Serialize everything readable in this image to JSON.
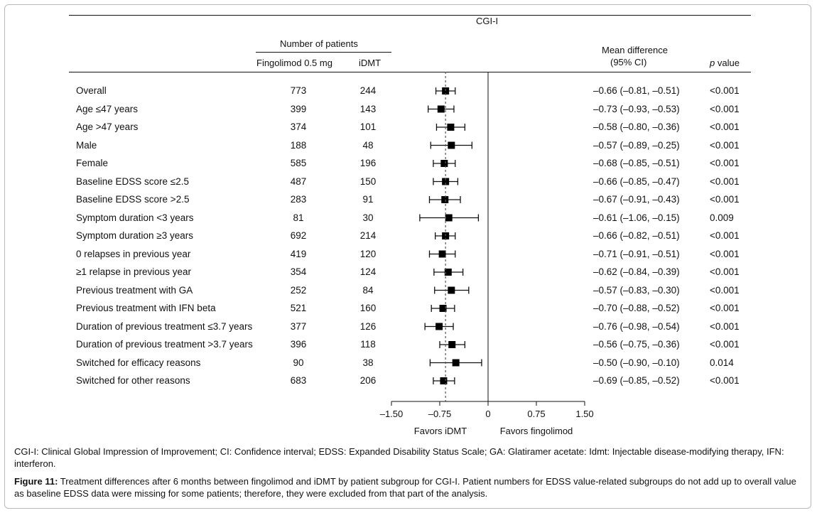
{
  "chart_data": {
    "type": "forest",
    "title": "CGI-I",
    "headers": {
      "number_of_patients": "Number of patients",
      "fingolimod": "Fingolimod 0.5 mg",
      "idmt": "iDMT",
      "mean_difference_line1": "Mean difference",
      "mean_difference_line2": "(95% CI)",
      "p_value_italic": "p",
      "p_value_rest": " value"
    },
    "x_axis": {
      "ticks": [
        -1.5,
        -0.75,
        0,
        0.75,
        1.5
      ],
      "tick_labels": [
        "–1.50",
        "–0.75",
        "0",
        "0.75",
        "1.50"
      ],
      "range": [
        -1.5,
        1.5
      ],
      "reference_line": 0,
      "dashed_line": -0.66,
      "left_label": "Favors iDMT",
      "right_label": "Favors fingolimod"
    },
    "rows": [
      {
        "label": "Overall",
        "fingolimod": "773",
        "idmt": "244",
        "mean": -0.66,
        "lo": -0.81,
        "hi": -0.51,
        "ci_text": "–0.66 (–0.81, –0.51)",
        "p": "<0.001"
      },
      {
        "label": "Age ≤47 years",
        "fingolimod": "399",
        "idmt": "143",
        "mean": -0.73,
        "lo": -0.93,
        "hi": -0.53,
        "ci_text": "–0.73 (–0.93, –0.53)",
        "p": "<0.001"
      },
      {
        "label": "Age >47 years",
        "fingolimod": "374",
        "idmt": "101",
        "mean": -0.58,
        "lo": -0.8,
        "hi": -0.36,
        "ci_text": "–0.58 (–0.80, –0.36)",
        "p": "<0.001"
      },
      {
        "label": "Male",
        "fingolimod": "188",
        "idmt": "48",
        "mean": -0.57,
        "lo": -0.89,
        "hi": -0.25,
        "ci_text": "–0.57 (–0.89, –0.25)",
        "p": "<0.001"
      },
      {
        "label": "Female",
        "fingolimod": "585",
        "idmt": "196",
        "mean": -0.68,
        "lo": -0.85,
        "hi": -0.51,
        "ci_text": "–0.68 (–0.85, –0.51)",
        "p": "<0.001"
      },
      {
        "label": "Baseline EDSS score ≤2.5",
        "fingolimod": "487",
        "idmt": "150",
        "mean": -0.66,
        "lo": -0.85,
        "hi": -0.47,
        "ci_text": "–0.66 (–0.85, –0.47)",
        "p": "<0.001"
      },
      {
        "label": "Baseline EDSS score >2.5",
        "fingolimod": "283",
        "idmt": "91",
        "mean": -0.67,
        "lo": -0.91,
        "hi": -0.43,
        "ci_text": "–0.67 (–0.91, –0.43)",
        "p": "<0.001"
      },
      {
        "label": "Symptom duration <3 years",
        "fingolimod": "81",
        "idmt": "30",
        "mean": -0.61,
        "lo": -1.06,
        "hi": -0.15,
        "ci_text": "–0.61 (–1.06, –0.15)",
        "p": "0.009"
      },
      {
        "label": "Symptom duration ≥3 years",
        "fingolimod": "692",
        "idmt": "214",
        "mean": -0.66,
        "lo": -0.82,
        "hi": -0.51,
        "ci_text": "–0.66 (–0.82, –0.51)",
        "p": "<0.001"
      },
      {
        "label": "0 relapses in previous year",
        "fingolimod": "419",
        "idmt": "120",
        "mean": -0.71,
        "lo": -0.91,
        "hi": -0.51,
        "ci_text": "–0.71 (–0.91, –0.51)",
        "p": "<0.001"
      },
      {
        "label": "≥1 relapse in previous year",
        "fingolimod": "354",
        "idmt": "124",
        "mean": -0.62,
        "lo": -0.84,
        "hi": -0.39,
        "ci_text": "–0.62 (–0.84, –0.39)",
        "p": "<0.001"
      },
      {
        "label": "Previous treatment with GA",
        "fingolimod": "252",
        "idmt": "84",
        "mean": -0.57,
        "lo": -0.83,
        "hi": -0.3,
        "ci_text": "–0.57 (–0.83, –0.30)",
        "p": "<0.001"
      },
      {
        "label": "Previous treatment with IFN beta",
        "fingolimod": "521",
        "idmt": "160",
        "mean": -0.7,
        "lo": -0.88,
        "hi": -0.52,
        "ci_text": "–0.70 (–0.88, –0.52)",
        "p": "<0.001"
      },
      {
        "label": "Duration of previous treatment ≤3.7 years",
        "fingolimod": "377",
        "idmt": "126",
        "mean": -0.76,
        "lo": -0.98,
        "hi": -0.54,
        "ci_text": "–0.76 (–0.98, –0.54)",
        "p": "<0.001"
      },
      {
        "label": "Duration of previous treatment >3.7 years",
        "fingolimod": "396",
        "idmt": "118",
        "mean": -0.56,
        "lo": -0.75,
        "hi": -0.36,
        "ci_text": "–0.56 (–0.75, –0.36)",
        "p": "<0.001"
      },
      {
        "label": "Switched for efficacy reasons",
        "fingolimod": "90",
        "idmt": "38",
        "mean": -0.5,
        "lo": -0.9,
        "hi": -0.1,
        "ci_text": "–0.50 (–0.90, –0.10)",
        "p": "0.014"
      },
      {
        "label": "Switched for other reasons",
        "fingolimod": "683",
        "idmt": "206",
        "mean": -0.69,
        "lo": -0.85,
        "hi": -0.52,
        "ci_text": "–0.69 (–0.85, –0.52)",
        "p": "<0.001"
      }
    ]
  },
  "footnote": "CGI-I: Clinical Global Impression of Improvement; CI: Confidence interval; EDSS: Expanded Disability Status Scale; GA: Glatiramer acetate: Idmt: Injectable disease-modifying therapy, IFN: interferon.",
  "figure_caption": {
    "label": "Figure 11:",
    "text": " Treatment differences after 6 months between fingolimod and iDMT by patient subgroup for CGI-I. Patient numbers for EDSS value-related subgroups do not add up to overall value as baseline EDSS data were missing for some patients; therefore, they were excluded from that part of the analysis."
  }
}
